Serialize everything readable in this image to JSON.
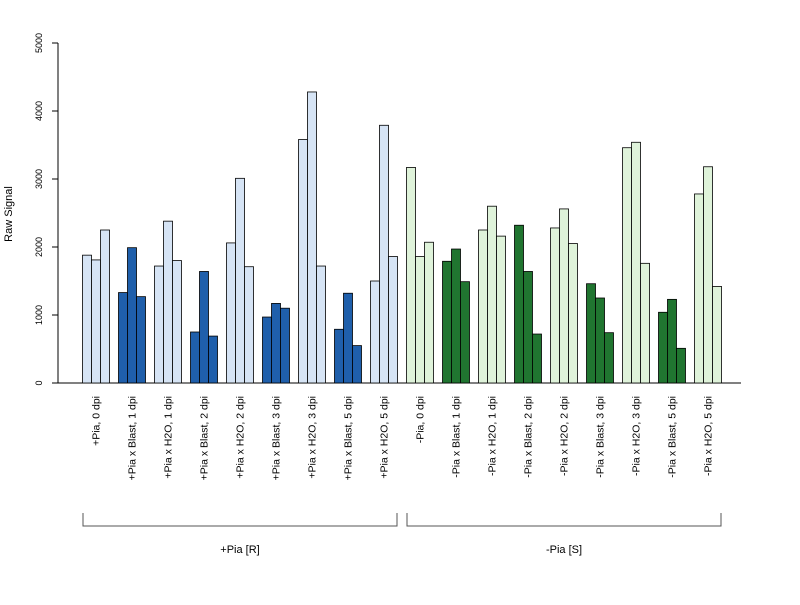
{
  "chart_data": {
    "type": "bar",
    "ylabel": "Raw Signal",
    "xlabel": "",
    "ylim": [
      0,
      5000
    ],
    "yticks": [
      0,
      1000,
      2000,
      3000,
      4000,
      5000
    ],
    "grid": false,
    "bars_per_group": 3,
    "colors": {
      "pia_plus_light": "#d6e4f5",
      "pia_plus_dark": "#1f5fab",
      "pia_minus_light": "#dff3da",
      "pia_minus_dark": "#207530",
      "bar_border": "#000000",
      "axis": "#000000"
    },
    "groups": [
      {
        "label": "+Pia, 0 dpi",
        "shade": "pia_plus_light",
        "values": [
          1880,
          1810,
          2250
        ]
      },
      {
        "label": "+Pia x Blast, 1 dpi",
        "shade": "pia_plus_dark",
        "values": [
          1330,
          1990,
          1270
        ]
      },
      {
        "label": "+Pia x H2O, 1 dpi",
        "shade": "pia_plus_light",
        "values": [
          1720,
          2380,
          1800
        ]
      },
      {
        "label": "+Pia x Blast, 2 dpi",
        "shade": "pia_plus_dark",
        "values": [
          750,
          1640,
          690
        ]
      },
      {
        "label": "+Pia x H2O, 2 dpi",
        "shade": "pia_plus_light",
        "values": [
          2060,
          3010,
          1710
        ]
      },
      {
        "label": "+Pia x Blast, 3 dpi",
        "shade": "pia_plus_dark",
        "values": [
          970,
          1170,
          1100
        ]
      },
      {
        "label": "+Pia x H2O, 3 dpi",
        "shade": "pia_plus_light",
        "values": [
          3580,
          4280,
          1720
        ]
      },
      {
        "label": "+Pia x Blast, 5 dpi",
        "shade": "pia_plus_dark",
        "values": [
          790,
          1320,
          550
        ]
      },
      {
        "label": "+Pia x H2O, 5 dpi",
        "shade": "pia_plus_light",
        "values": [
          1500,
          3790,
          1860
        ]
      },
      {
        "label": "-Pia, 0 dpi",
        "shade": "pia_minus_light",
        "values": [
          3170,
          1860,
          2070
        ]
      },
      {
        "label": "-Pia x Blast, 1 dpi",
        "shade": "pia_minus_dark",
        "values": [
          1790,
          1970,
          1490
        ]
      },
      {
        "label": "-Pia x H2O, 1 dpi",
        "shade": "pia_minus_light",
        "values": [
          2250,
          2600,
          2160
        ]
      },
      {
        "label": "-Pia x Blast, 2 dpi",
        "shade": "pia_minus_dark",
        "values": [
          2320,
          1640,
          720
        ]
      },
      {
        "label": "-Pia x H2O, 2 dpi",
        "shade": "pia_minus_light",
        "values": [
          2280,
          2560,
          2050
        ]
      },
      {
        "label": "-Pia x Blast, 3 dpi",
        "shade": "pia_minus_dark",
        "values": [
          1460,
          1250,
          740
        ]
      },
      {
        "label": "-Pia x H2O, 3 dpi",
        "shade": "pia_minus_light",
        "values": [
          3460,
          3540,
          1760
        ]
      },
      {
        "label": "-Pia x Blast, 5 dpi",
        "shade": "pia_minus_dark",
        "values": [
          1040,
          1230,
          510
        ]
      },
      {
        "label": "-Pia x H2O, 5 dpi",
        "shade": "pia_minus_light",
        "values": [
          2780,
          3180,
          1420
        ]
      }
    ],
    "brackets": [
      {
        "label": "+Pia [R]",
        "from_group": 0,
        "to_group": 8
      },
      {
        "label": "-Pia [S]",
        "from_group": 9,
        "to_group": 17
      }
    ]
  }
}
